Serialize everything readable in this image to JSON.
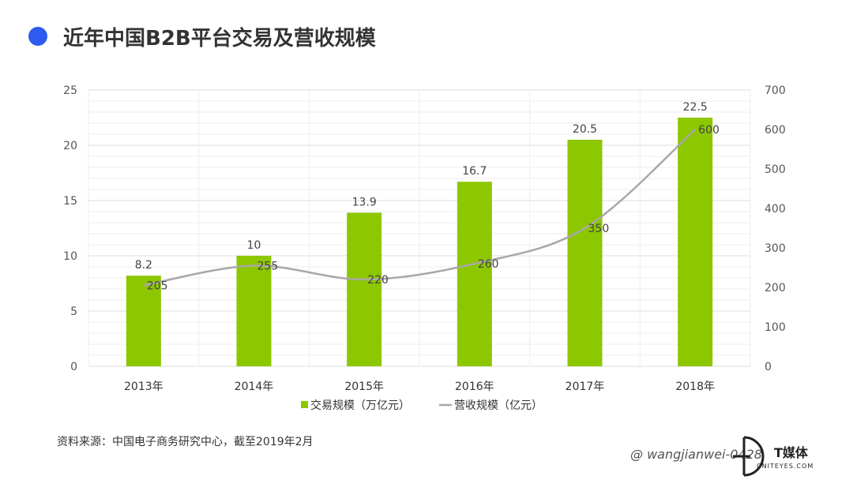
{
  "title": "近年中国B2B平台交易及营收规模",
  "source": "资料来源：中国电子商务研究中心，截至2019年2月",
  "watermark": "@ wangjianwei-0428",
  "logo": {
    "main": "T媒体",
    "sub": "CNITEYES.COM"
  },
  "colors": {
    "bar": "#8dc700",
    "line": "#a8a8a8",
    "title_dot": "#2e5bf0"
  },
  "chart_data": {
    "type": "bar+line",
    "categories": [
      "2013年",
      "2014年",
      "2015年",
      "2016年",
      "2017年",
      "2018年"
    ],
    "series": [
      {
        "name": "交易规模（万亿元）",
        "type": "bar",
        "axis": "left",
        "values": [
          8.2,
          10,
          13.9,
          16.7,
          20.5,
          22.5
        ],
        "labels": [
          "8.2",
          "10",
          "13.9",
          "16.7",
          "20.5",
          "22.5"
        ]
      },
      {
        "name": "营收规模（亿元）",
        "type": "line",
        "axis": "right",
        "smooth": true,
        "values": [
          205,
          255,
          220,
          260,
          350,
          600
        ],
        "labels": [
          "205",
          "255",
          "220",
          "260",
          "350",
          "600"
        ]
      }
    ],
    "y_left": {
      "min": 0,
      "max": 25,
      "ticks": [
        "0",
        "5",
        "10",
        "15",
        "20",
        "25"
      ]
    },
    "y_right": {
      "min": 0,
      "max": 700,
      "ticks": [
        "0",
        "100",
        "200",
        "300",
        "400",
        "500",
        "600",
        "700"
      ]
    },
    "grid": true,
    "legend": "bottom"
  }
}
